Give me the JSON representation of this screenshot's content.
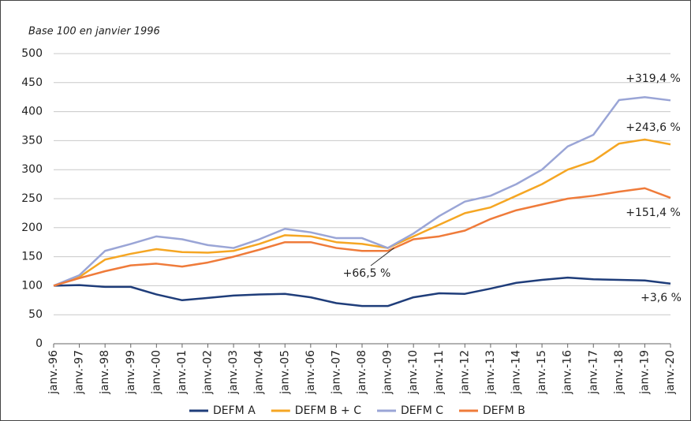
{
  "chart_data": {
    "type": "line",
    "subtitle": "Base 100 en janvier 1996",
    "categories": [
      "janv.-96",
      "janv.-97",
      "janv.-98",
      "janv.-99",
      "janv.-00",
      "janv.-01",
      "janv.-02",
      "janv.-03",
      "janv.-04",
      "janv.-05",
      "janv.-06",
      "janv.-07",
      "janv.-08",
      "janv.-09",
      "janv.-10",
      "janv.-11",
      "janv.-12",
      "janv.-13",
      "janv.-14",
      "janv.-15",
      "janv.-16",
      "janv.-17",
      "janv.-18",
      "janv.-19",
      "janv.-20"
    ],
    "series": [
      {
        "name": "DEFM A",
        "color": "#1f3d7a",
        "values": [
          100,
          101,
          98,
          98,
          85,
          75,
          79,
          83,
          85,
          86,
          80,
          70,
          65,
          65,
          80,
          87,
          86,
          95,
          105,
          110,
          114,
          111,
          110,
          109,
          103.6
        ]
      },
      {
        "name": "DEFM B + C",
        "color": "#f5a623",
        "values": [
          100,
          115,
          145,
          155,
          163,
          158,
          157,
          160,
          172,
          187,
          185,
          175,
          172,
          165,
          185,
          205,
          225,
          235,
          255,
          275,
          300,
          315,
          345,
          352,
          343.6
        ]
      },
      {
        "name": "DEFM C",
        "color": "#9aa5d6",
        "values": [
          100,
          118,
          160,
          172,
          185,
          180,
          170,
          165,
          180,
          198,
          192,
          182,
          182,
          165,
          190,
          220,
          245,
          255,
          275,
          300,
          340,
          360,
          420,
          425,
          419.4
        ]
      },
      {
        "name": "DEFM B",
        "color": "#ef7b3a",
        "values": [
          100,
          113,
          125,
          135,
          138,
          133,
          140,
          150,
          162,
          175,
          175,
          165,
          160,
          160,
          180,
          185,
          195,
          215,
          230,
          240,
          250,
          255,
          262,
          268,
          251.4
        ]
      }
    ],
    "annotations": [
      "+319,4 %",
      "+243,6 %",
      "+151,4 %",
      "+3,6 %",
      "+66,5 %"
    ],
    "ylim": [
      0,
      500
    ],
    "yticks": [
      0,
      50,
      100,
      150,
      200,
      250,
      300,
      350,
      400,
      450,
      500
    ],
    "grid": true
  }
}
